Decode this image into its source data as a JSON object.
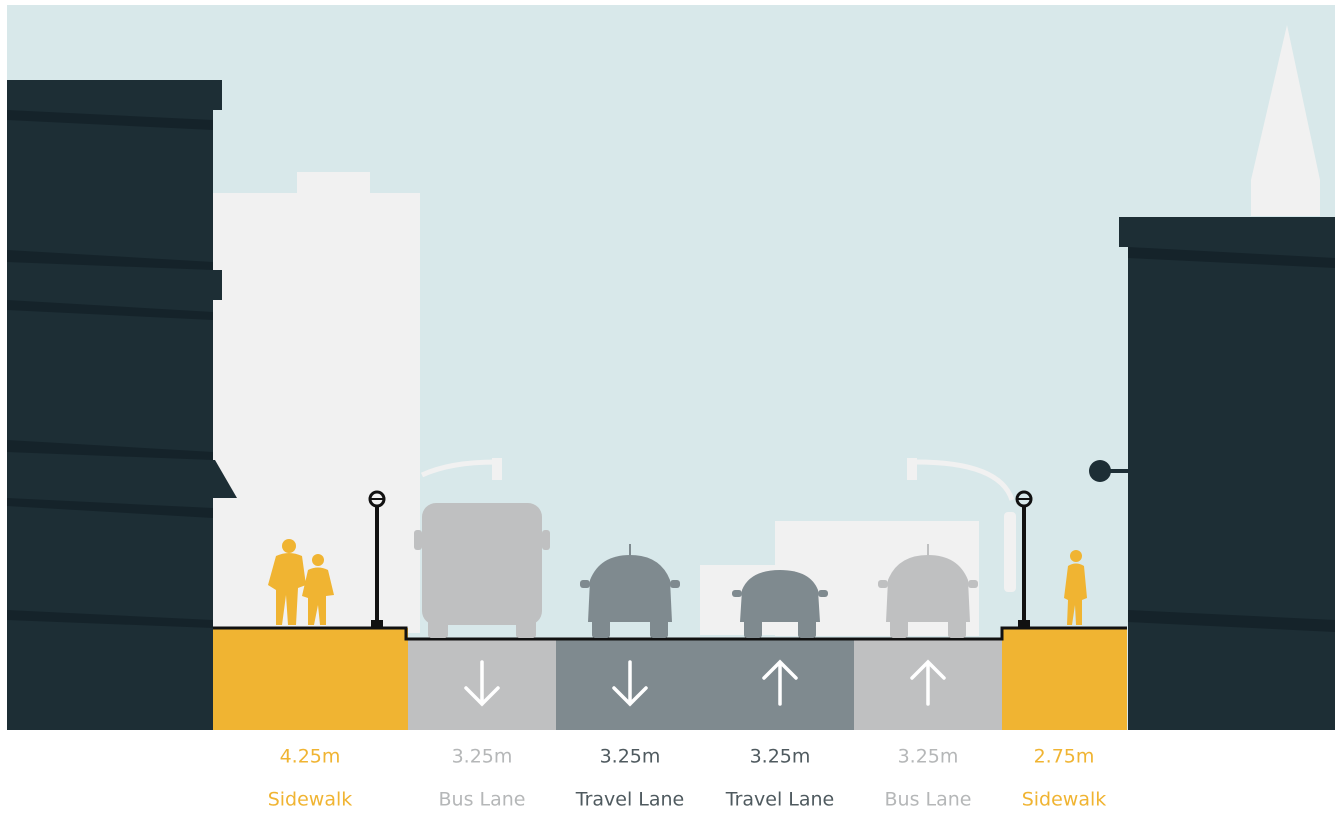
{
  "segments": [
    {
      "width": "4.25m",
      "name": "Sidewalk",
      "kind": "sidewalk"
    },
    {
      "width": "3.25m",
      "name": "Bus Lane",
      "kind": "bus"
    },
    {
      "width": "3.25m",
      "name": "Travel Lane",
      "kind": "travel"
    },
    {
      "width": "3.25m",
      "name": "Travel Lane",
      "kind": "travel"
    },
    {
      "width": "3.25m",
      "name": "Bus Lane",
      "kind": "bus"
    },
    {
      "width": "2.75m",
      "name": "Sidewalk",
      "kind": "sidewalk"
    }
  ]
}
